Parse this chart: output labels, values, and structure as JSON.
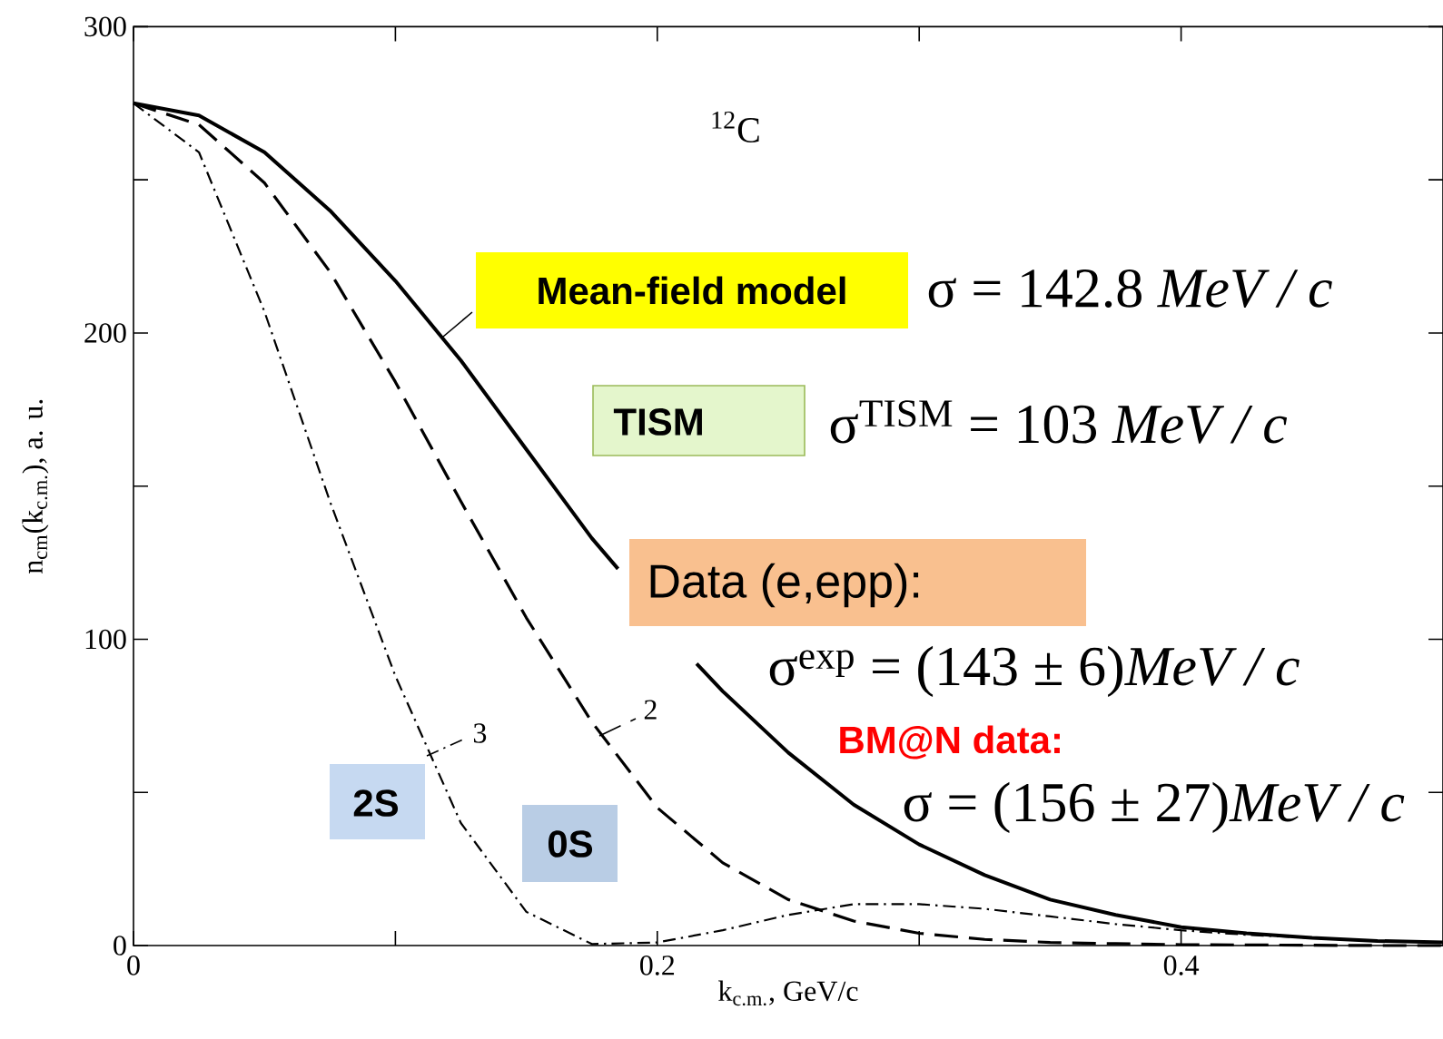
{
  "chart_data": {
    "type": "line",
    "x": [
      0,
      0.025,
      0.05,
      0.075,
      0.1,
      0.125,
      0.15,
      0.175,
      0.2,
      0.225,
      0.25,
      0.275,
      0.3,
      0.325,
      0.35,
      0.375,
      0.4,
      0.425,
      0.45,
      0.475,
      0.5
    ],
    "series": [
      {
        "name": "Mean-field model",
        "color": "#000000",
        "line_style": "solid",
        "x": [
          0,
          0.025,
          0.05,
          0.075,
          0.1,
          0.125,
          0.15,
          0.175,
          0.185,
          0.2,
          0.215,
          0.225,
          0.25,
          0.275,
          0.3,
          0.325,
          0.35,
          0.375,
          0.4,
          0.425,
          0.45,
          0.475,
          0.5
        ],
        "values": [
          275,
          271,
          259,
          240,
          217,
          191,
          162,
          133,
          123,
          null,
          92,
          83,
          63,
          46,
          33,
          23,
          15,
          10,
          6,
          4,
          2.5,
          1.5,
          1
        ]
      },
      {
        "name": "2",
        "color": "#000000",
        "line_style": "dashed",
        "values": [
          275,
          268,
          249,
          220,
          184,
          145,
          107,
          73,
          45,
          27,
          15,
          8,
          4,
          2,
          1,
          0.6,
          0.3,
          0.2,
          0.1,
          0,
          0
        ]
      },
      {
        "name": "3",
        "color": "#000000",
        "line_style": "dashdot",
        "values": [
          275,
          259,
          207,
          145,
          88,
          40,
          11,
          0.5,
          1,
          5,
          10,
          13.5,
          13.5,
          12,
          9.5,
          7,
          5,
          3.5,
          2.5,
          1.5,
          1
        ]
      }
    ],
    "xlabel": "k$_{c.m.}$,  GeV/c",
    "ylabel": "n$_{cm}$(k$_{c.m.}$), a. u.",
    "xlim": [
      0,
      0.5
    ],
    "ylim": [
      0,
      300
    ],
    "xticks": [
      0,
      {
        "value": 0.1,
        "label": null
      },
      0.2,
      {
        "value": 0.3,
        "label": null
      },
      0.4
    ],
    "yticks": [
      0,
      {
        "value": 50,
        "label": null
      },
      100,
      {
        "value": 150,
        "label": null
      },
      200,
      {
        "value": 250,
        "label": null
      },
      300
    ],
    "annotations": [
      "$^{12}$C",
      "σ = 142.8 *MeV / c*",
      "TISM",
      "σ$^{TISM}$ = 103 *MeV / c*",
      "Data (e,epp):",
      "σ$^{exp}$ = (143 ± 6)*MeV / c*",
      "BM@N data:",
      "σ = (156 ± 27)*MeV / c*",
      "2S",
      "0S"
    ],
    "grid": false,
    "legend": "left"
  }
}
